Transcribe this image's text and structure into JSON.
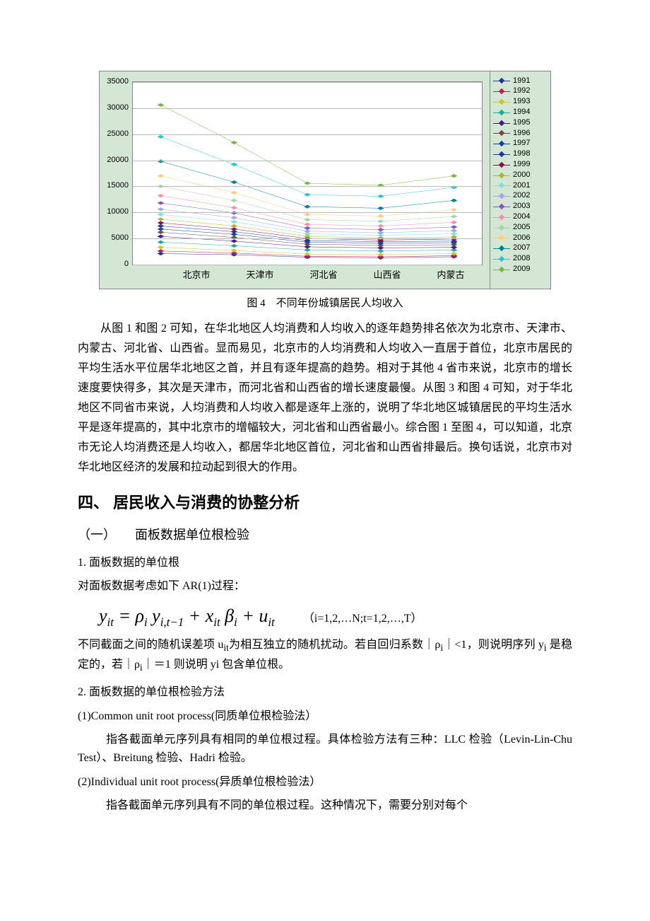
{
  "chart": {
    "type": "line",
    "background_color": "#d4e6d4",
    "plot_background": "#ffffff",
    "grid_color": "#bbbbbb",
    "border_color": "#888888",
    "ylim": [
      0,
      35000
    ],
    "ytick_step": 5000,
    "yticks": [
      0,
      5000,
      10000,
      15000,
      20000,
      25000,
      30000,
      35000
    ],
    "tick_fontsize": 11,
    "xlabel_fontsize": 13,
    "categories": [
      "北京市",
      "天津市",
      "河北省",
      "山西省",
      "内蒙古"
    ],
    "series": [
      {
        "name": "1991",
        "color": "#1f3a93",
        "marker": "diamond",
        "values": [
          2100,
          1900,
          1400,
          1300,
          1500
        ]
      },
      {
        "name": "1992",
        "color": "#c2185b",
        "marker": "square",
        "values": [
          2600,
          2200,
          1600,
          1500,
          1700
        ]
      },
      {
        "name": "1993",
        "color": "#c6c92a",
        "marker": "triangle",
        "values": [
          3300,
          2700,
          2000,
          1900,
          2100
        ]
      },
      {
        "name": "1994",
        "color": "#26a69a",
        "marker": "diamond",
        "values": [
          4300,
          3600,
          2800,
          2600,
          2800
        ]
      },
      {
        "name": "1995",
        "color": "#4a148c",
        "marker": "star",
        "values": [
          5400,
          4500,
          3400,
          3200,
          3300
        ]
      },
      {
        "name": "1996",
        "color": "#6d4c41",
        "marker": "circle",
        "values": [
          6200,
          5200,
          3900,
          3700,
          3800
        ]
      },
      {
        "name": "1997",
        "color": "#0d47a1",
        "marker": "plus",
        "values": [
          6800,
          5800,
          4300,
          4100,
          4200
        ]
      },
      {
        "name": "1998",
        "color": "#283593",
        "marker": "dash",
        "values": [
          7400,
          6300,
          4600,
          4400,
          4500
        ]
      },
      {
        "name": "1999",
        "color": "#880e4f",
        "marker": "dash",
        "values": [
          8000,
          6800,
          5000,
          4700,
          4900
        ]
      },
      {
        "name": "2000",
        "color": "#afb42b",
        "marker": "diamond",
        "values": [
          8700,
          7400,
          5400,
          5100,
          5300
        ]
      },
      {
        "name": "2001",
        "color": "#80deea",
        "marker": "square",
        "values": [
          9600,
          8200,
          5900,
          5600,
          5900
        ]
      },
      {
        "name": "2002",
        "color": "#9fa8da",
        "marker": "triangle",
        "values": [
          10600,
          9000,
          6400,
          6100,
          6500
        ]
      },
      {
        "name": "2003",
        "color": "#7e57c2",
        "marker": "x",
        "values": [
          11800,
          9900,
          7000,
          6700,
          7200
        ]
      },
      {
        "name": "2004",
        "color": "#f48fb1",
        "marker": "star",
        "values": [
          13200,
          10900,
          7700,
          7400,
          8100
        ]
      },
      {
        "name": "2005",
        "color": "#a5d6a7",
        "marker": "circle",
        "values": [
          15000,
          12300,
          8600,
          8300,
          9200
        ]
      },
      {
        "name": "2006",
        "color": "#ffcc80",
        "marker": "plus",
        "values": [
          17000,
          13800,
          9600,
          9300,
          10500
        ]
      },
      {
        "name": "2007",
        "color": "#00838f",
        "marker": "dash",
        "values": [
          19800,
          15800,
          11100,
          10800,
          12300
        ]
      },
      {
        "name": "2008",
        "color": "#26c6da",
        "marker": "dash",
        "values": [
          24500,
          19200,
          13400,
          13100,
          14800
        ]
      },
      {
        "name": "2009",
        "color": "#7cb342",
        "marker": "diamond",
        "values": [
          30600,
          23400,
          15600,
          15200,
          17000
        ]
      }
    ]
  },
  "caption": "图 4　不同年份城镇居民人均收入",
  "para1": "从图 1 和图 2 可知，在华北地区人均消费和人均收入的逐年趋势排名依次为北京市、天津市、内蒙古、河北省、山西省。显而易见，北京市的人均消费和人均收入一直居于首位，北京市居民的平均生活水平位居华北地区之首，并且有逐年提高的趋势。相对于其他 4 省市来说，北京市的增长速度要快得多，其次是天津市，而河北省和山西省的增长速度最慢。从图 3 和图 4 可知，对于华北地区不同省市来说，人均消费和人均收入都是逐年上涨的，说明了华北地区城镇居民的平均生活水平是逐年提高的，其中北京市的增幅较大，河北省和山西省最小。综合图 1 至图 4，可以知道，北京市无论人均消费还是人均收入，都居华北地区首位，河北省和山西省排最后。换句话说，北京市对华北地区经济的发展和拉动起到很大的作用。",
  "h2": "四、 居民收入与消费的协整分析",
  "h3": "（一）　　面板数据单位根检验",
  "h4a": "1.  面板数据的单位根",
  "ar_intro": "对面板数据考虑如下 AR(1)过程：",
  "formula_cond": "（i=1,2,…N;t=1,2,…,T）",
  "ar_explain": "不同截面之间的随机误差项 uit 为相互独立的随机扰动。若自回归系数｜ρi｜<1，则说明序列 yi 是稳定的，若｜ρi｜＝1 则说明 yi 包含单位根。",
  "h4b": "2.  面板数据的单位根检验方法",
  "m1_title": "(1)Common unit root process(同质单位根检验法）",
  "m1_body": "指各截面单元序列具有相同的单位根过程。具体检验方法有三种：LLC 检验（Levin-Lin-Chu Test）、Breitung  检验、Hadri 检验。",
  "m2_title": "(2)Individual unit root process(异质单位根检验法）",
  "m2_body": "指各截面单元序列具有不同的单位根过程。这种情况下，需要分别对每个"
}
